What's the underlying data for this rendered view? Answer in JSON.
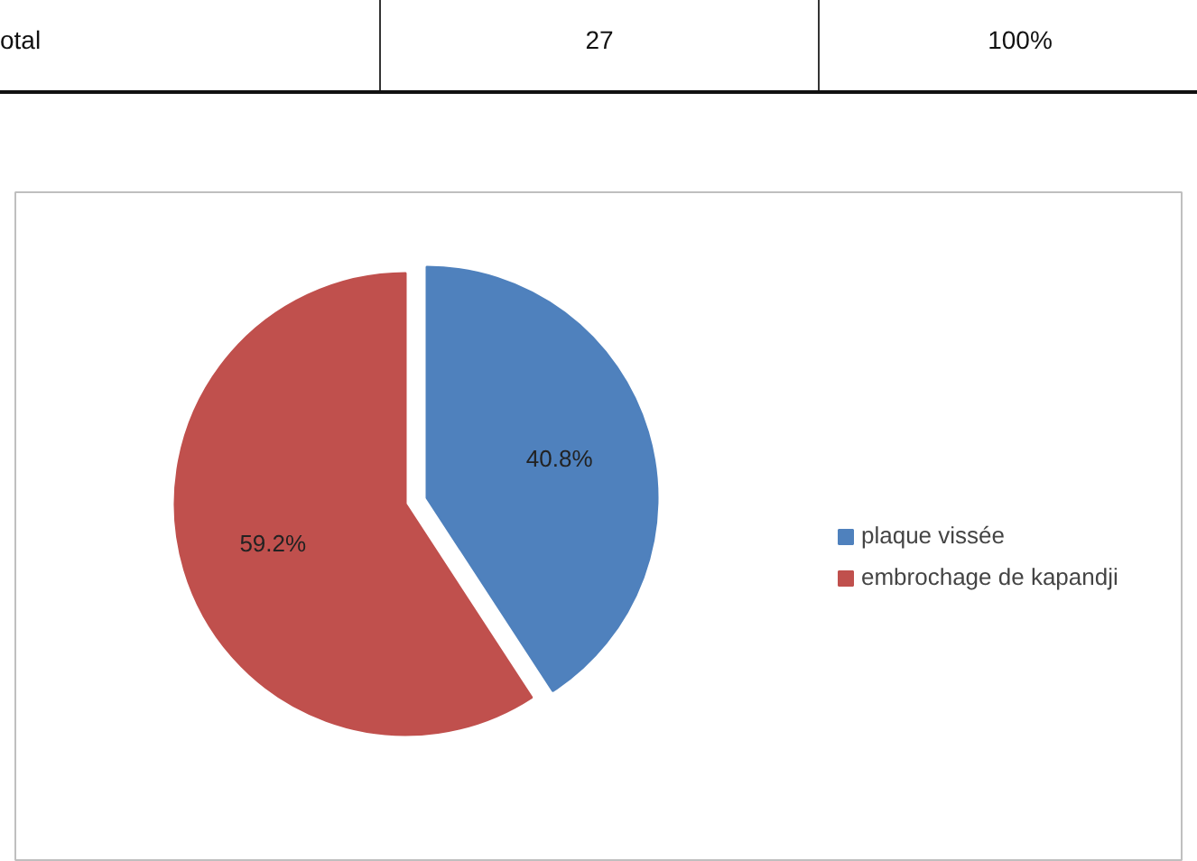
{
  "chart_data": {
    "type": "pie",
    "categories": [
      "plaque vissée",
      "embrochage de kapandji"
    ],
    "values": [
      40.8,
      59.2
    ],
    "colors": [
      "#4f81bd",
      "#c0504d"
    ],
    "value_labels": [
      "40.8%",
      "59.2%"
    ],
    "legend": "right",
    "annotations": [
      "otal",
      "27",
      "100%"
    ]
  }
}
